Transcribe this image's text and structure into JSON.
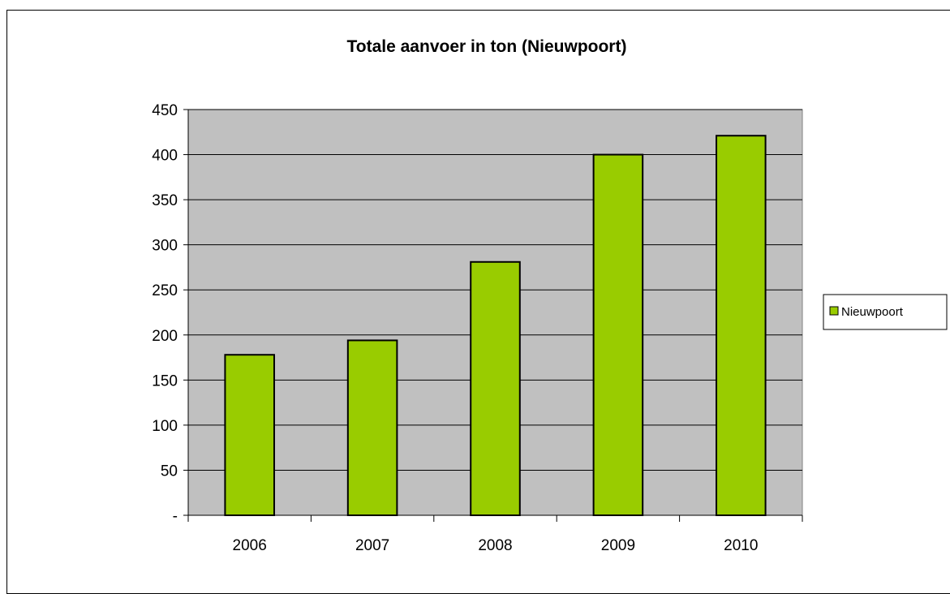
{
  "chart_data": {
    "type": "bar",
    "title": "Totale aanvoer in ton (Nieuwpoort)",
    "categories": [
      "2006",
      "2007",
      "2008",
      "2009",
      "2010"
    ],
    "series": [
      {
        "name": "Nieuwpoort",
        "values": [
          178,
          194,
          281,
          400,
          421
        ],
        "color": "#99cc00"
      }
    ],
    "yticks": [
      "-",
      "50",
      "100",
      "150",
      "200",
      "250",
      "300",
      "350",
      "400",
      "450"
    ],
    "ylim": [
      0,
      450
    ],
    "ystep": 50,
    "grid": true,
    "plot_background": "#c0c0c0",
    "legend_position": "right"
  }
}
